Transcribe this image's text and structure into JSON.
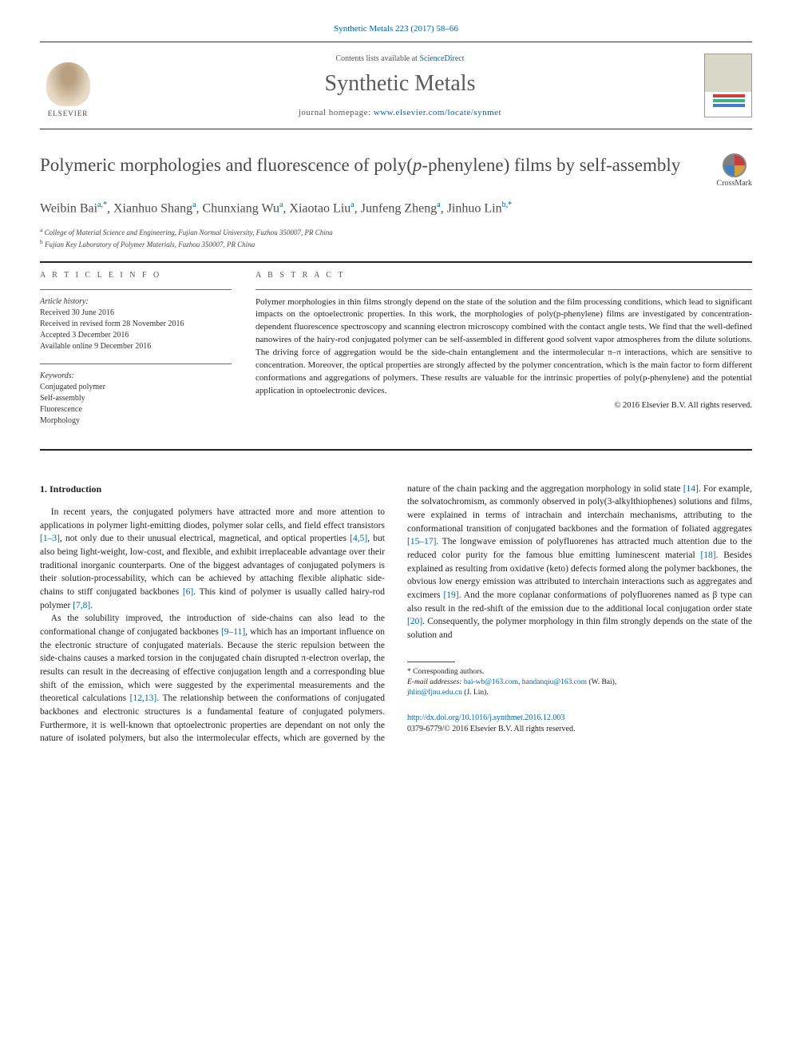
{
  "journal_ref": "Synthetic Metals 223 (2017) 58–66",
  "header": {
    "contents_prefix": "Contents lists available at ",
    "contents_link": "ScienceDirect",
    "journal_title": "Synthetic Metals",
    "homepage_prefix": "journal homepage: ",
    "homepage_link": "www.elsevier.com/locate/synmet",
    "elsevier_label": "ELSEVIER"
  },
  "article": {
    "title": "Polymeric morphologies and fluorescence of poly(p-phenylene) films by self-assembly",
    "crossmark_label": "CrossMark",
    "authors_html": "Weibin Bai<sup>a,*</sup>, Xianhuo Shang<sup>a</sup>, Chunxiang Wu<sup>a</sup>, Xiaotao Liu<sup>a</sup>, Junfeng Zheng<sup>a</sup>, Jinhuo Lin<sup>b,*</sup>",
    "affiliations": {
      "a": "College of Material Science and Engineering, Fujian Normal University, Fuzhou 350007, PR China",
      "b": "Fujian Key Laboratory of Polymer Materials, Fuzhou 350007, PR China"
    }
  },
  "info": {
    "label": "A R T I C L E   I N F O",
    "history_hdr": "Article history:",
    "history": [
      "Received 30 June 2016",
      "Received in revised form 28 November 2016",
      "Accepted 3 December 2016",
      "Available online 9 December 2016"
    ],
    "keywords_hdr": "Keywords:",
    "keywords": [
      "Conjugated polymer",
      "Self-assembly",
      "Fluorescence",
      "Morphology"
    ]
  },
  "abstract": {
    "label": "A B S T R A C T",
    "text": "Polymer morphologies in thin films strongly depend on the state of the solution and the film processing conditions, which lead to significant impacts on the optoelectronic properties. In this work, the morphologies of poly(p-phenylene) films are investigated by concentration-dependent fluorescence spectroscopy and scanning electron microscopy combined with the contact angle tests. We find that the well-defined nanowires of the hairy-rod conjugated polymer can be self-assembled in different good solvent vapor atmospheres from the dilute solutions. The driving force of aggregation would be the side-chain entanglement and the intermolecular π–π interactions, which are sensitive to concentration. Moreover, the optical properties are strongly affected by the polymer concentration, which is the main factor to form different conformations and aggregations of polymers. These results are valuable for the intrinsic properties of poly(p-phenylene) and the potential application in optoelectronic devices.",
    "copyright": "© 2016 Elsevier B.V. All rights reserved."
  },
  "body": {
    "section_heading": "1. Introduction",
    "p1_a": "In recent years, the conjugated polymers have attracted more and more attention to applications in polymer light-emitting diodes, polymer solar cells, and field effect transistors ",
    "ref1": "[1–3]",
    "p1_b": ", not only due to their unusual electrical, magnetical, and optical properties ",
    "ref2": "[4,5]",
    "p1_c": ", but also being light-weight, low-cost, and flexible, and exhibit irreplaceable advantage over their traditional inorganic counterparts. One of the biggest advantages of conjugated polymers is their solution-processability, which can be achieved by attaching flexible aliphatic side-chains to stiff conjugated backbones ",
    "ref3": "[6]",
    "p1_d": ". This kind of polymer is usually called hairy-rod polymer ",
    "ref4": "[7,8]",
    "p1_e": ".",
    "p2_a": "As the solubility improved, the introduction of side-chains can also lead to the conformational change of conjugated backbones ",
    "ref5": "[9–11]",
    "p2_b": ", which has an important influence on the electronic structure of conjugated materials. Because the steric repulsion between the side-chains causes a marked torsion in the conjugated chain disrupted π-electron overlap, the results can result in the ",
    "p2_c": "decreasing of effective conjugation length and a corresponding blue shift of the emission, which were suggested by the experimental measurements and the theoretical calculations ",
    "ref6": "[12,13]",
    "p2_d": ". The relationship between the conformations of conjugated backbones and electronic structures is a fundamental feature of conjugated polymers. Furthermore, it is well-known that optoelectronic properties are dependant on not only the nature of isolated polymers, but also the intermolecular effects, which are governed by the nature of the chain packing and the aggregation morphology in solid state ",
    "ref7": "[14]",
    "p2_e": ". For example, the solvatochromism, as commonly observed in poly(3-alkylthiophenes) solutions and films, were explained in terms of intrachain and interchain mechanisms, attributing to the conformational transition of conjugated backbones and the formation of foliated aggregates ",
    "ref8": "[15–17]",
    "p2_f": ". The longwave emission of polyfluorenes has attracted much attention due to the reduced color purity for the famous blue emitting luminescent material ",
    "ref9": "[18]",
    "p2_g": ". Besides explained as resulting from oxidative (keto) defects formed along the polymer backbones, the obvious low energy emission was attributed to interchain interactions such as aggregates and excimers ",
    "ref10": "[19]",
    "p2_h": ". And the more coplanar conformations of polyfluorenes named as β type can also result in the red-shift of the emission due to the additional local conjugation order state ",
    "ref11": "[20]",
    "p2_i": ". Consequently, the polymer morphology in thin film strongly depends on the state of the solution and"
  },
  "footnotes": {
    "corr": "* Corresponding authors.",
    "email_label": "E-mail addresses:",
    "email1": "bai-wb@163.com",
    "email2": "handanqiu@163.com",
    "email1_who": " (W. Bai), ",
    "email3": "jhlin@fjnu.edu.cn",
    "email3_who": " (J. Lin)."
  },
  "doi": {
    "link": "http://dx.doi.org/10.1016/j.synthmet.2016.12.003",
    "issn_line": "0379-6779/© 2016 Elsevier B.V. All rights reserved."
  },
  "colors": {
    "link": "#0066aa",
    "text": "#2b2b2b",
    "heading_gray": "#4a4a4a"
  }
}
